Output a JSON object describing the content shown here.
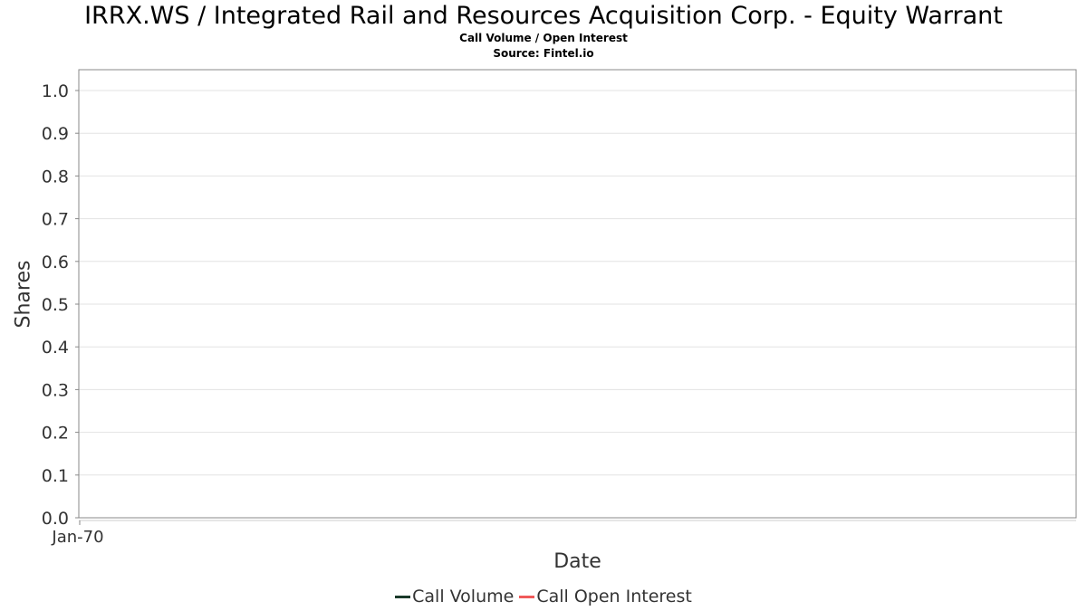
{
  "chart_data": {
    "type": "line",
    "title": "IRRX.WS / Integrated Rail and Resources Acquisition Corp. - Equity Warrant",
    "subtitle": "Call Volume / Open Interest",
    "source": "Source: Fintel.io",
    "xlabel": "Date",
    "ylabel": "Shares",
    "x_ticks": [
      "Jan-70"
    ],
    "y_ticks": [
      "0.0",
      "0.1",
      "0.2",
      "0.3",
      "0.4",
      "0.5",
      "0.6",
      "0.7",
      "0.8",
      "0.9",
      "1.0"
    ],
    "ylim": [
      0,
      1.05
    ],
    "grid": true,
    "legend_position": "bottom",
    "series": [
      {
        "name": "Call Volume",
        "color": "#1a3a2a",
        "values": []
      },
      {
        "name": "Call Open Interest",
        "color": "#f05a5a",
        "values": []
      }
    ]
  }
}
